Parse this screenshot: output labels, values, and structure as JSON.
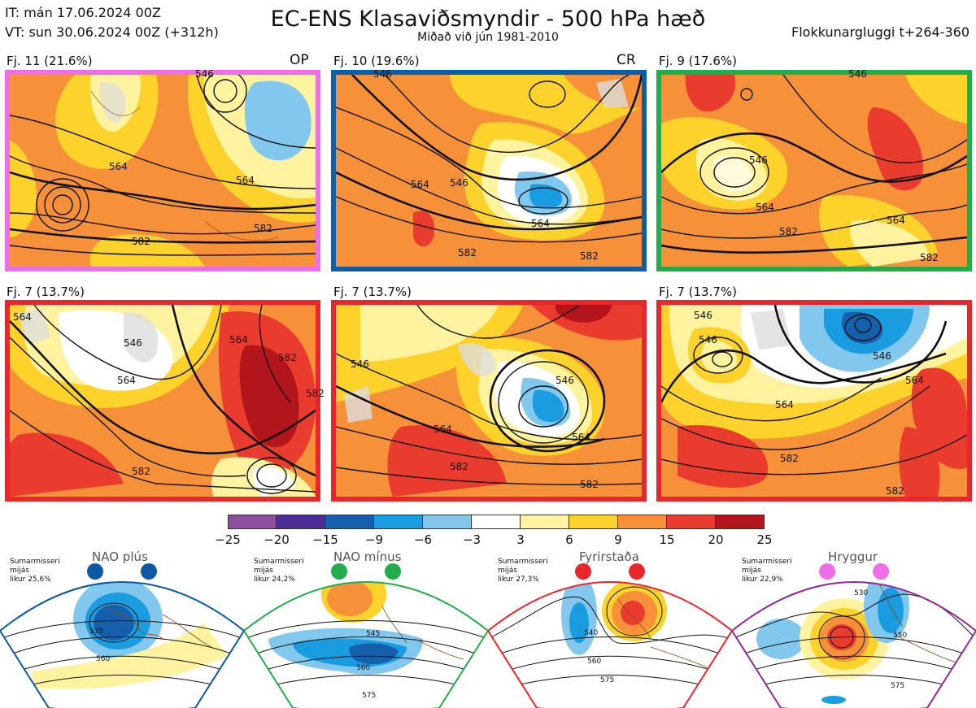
{
  "header": {
    "it": "IT: mán 17.06.2024 00Z",
    "vt": "VT: sun 30.06.2024 00Z  (+312h)",
    "title": "EC-ENS Klasaviðsmyndir - 500 hPa hæð",
    "subtitle": "Miðað við jún 1981-2010",
    "window": "Flokkunargluggi t+264-360"
  },
  "panels": [
    {
      "label": "Fj. 11 (21.6%)",
      "tag": "OP",
      "border": "#ee6ee8",
      "contours": [
        "546",
        "564",
        "564",
        "582",
        "582"
      ]
    },
    {
      "label": "Fj. 10 (19.6%)",
      "tag": "CR",
      "border": "#0a5fa8",
      "contours": [
        "546",
        "546",
        "564",
        "564",
        "582",
        "582"
      ]
    },
    {
      "label": "Fj. 9 (17.6%)",
      "tag": "",
      "border": "#22ad4a",
      "contours": [
        "546",
        "546",
        "564",
        "564",
        "582",
        "582"
      ]
    },
    {
      "label": "Fj. 7 (13.7%)",
      "tag": "",
      "border": "#e8262b",
      "contours": [
        "564",
        "546",
        "564",
        "564",
        "582",
        "582",
        "582"
      ]
    },
    {
      "label": "Fj. 7 (13.7%)",
      "tag": "",
      "border": "#e8262b",
      "contours": [
        "546",
        "546",
        "564",
        "564",
        "582",
        "582"
      ]
    },
    {
      "label": "Fj. 7 (13.7%)",
      "tag": "",
      "border": "#e8262b",
      "contours": [
        "546",
        "546",
        "546",
        "564",
        "564",
        "582",
        "582"
      ]
    }
  ],
  "colorbar": {
    "colors": [
      "#8c4fa0",
      "#4b2f96",
      "#1460ad",
      "#1a9de0",
      "#82c8ee",
      "#ffffff",
      "#fff3a0",
      "#fdd22a",
      "#f6913a",
      "#ea3b2f",
      "#b3151c"
    ],
    "ticks": [
      "−25",
      "−20",
      "−15",
      "−9",
      "−6",
      "−3",
      "3",
      "6",
      "9",
      "15",
      "20",
      "25"
    ]
  },
  "regimes": [
    {
      "name": "NAO plús",
      "season": "Sumarmisseri",
      "avg": "mijás",
      "prob": "likur 25,6%",
      "color": "#0b58a4",
      "contours": [
        "535",
        "560"
      ]
    },
    {
      "name": "NAO mínus",
      "season": "Sumarmisseri",
      "avg": "mijás",
      "prob": "likur 24,2%",
      "color": "#22ad4a",
      "contours": [
        "545",
        "560",
        "575"
      ]
    },
    {
      "name": "Fyrirstaða",
      "season": "Sumarmisseri",
      "avg": "mijás",
      "prob": "likur 27,3%",
      "color": "#e8262b",
      "contours": [
        "540",
        "560",
        "575"
      ]
    },
    {
      "name": "Hryggur",
      "season": "Sumarmisseri",
      "avg": "mijás",
      "prob": "likur 22,9%",
      "color": "#ee6ee8",
      "contours": [
        "530",
        "550",
        "575"
      ]
    }
  ]
}
